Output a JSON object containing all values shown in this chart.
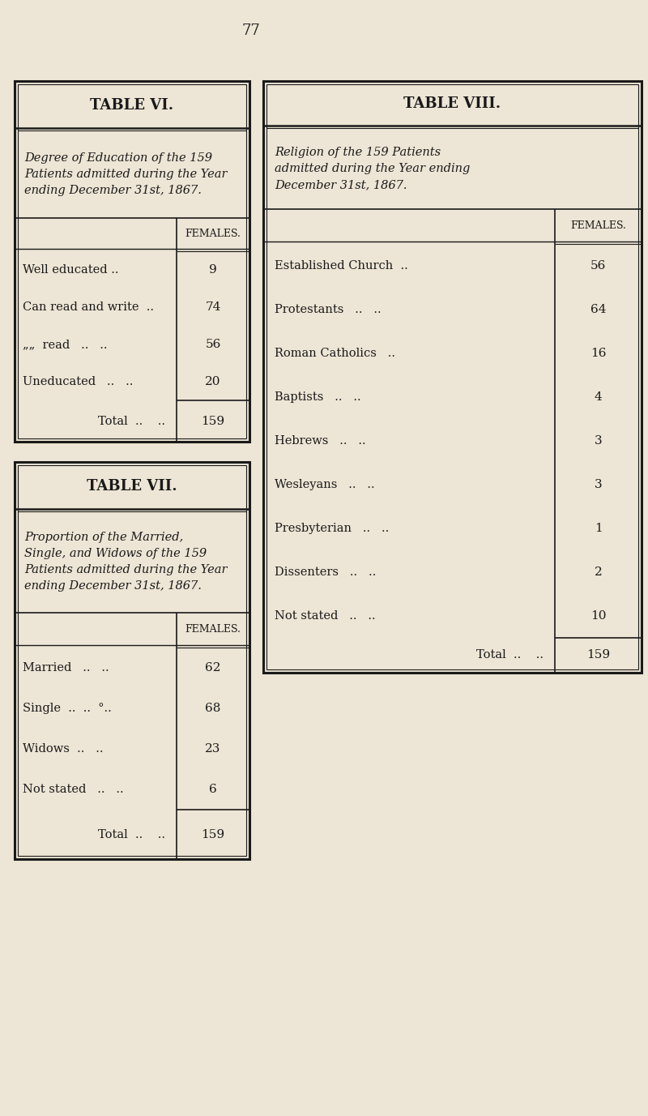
{
  "page_number": "77",
  "bg_color": "#ede5d5",
  "table_bg": "#ede5d5",
  "border_color": "#1a1a1a",
  "text_color": "#1a1a1a",
  "table6": {
    "title": "TABLE VI.",
    "subtitle": "Degree of Education of the 159\nPatients admitted during the Year\nending December 31st, 1867.",
    "col_header": "FEMALES.",
    "row_labels": [
      "Well educated ..",
      "Can read and write  ..",
      "„„  read   ..   ..",
      "Uneducated   ..   .."
    ],
    "row_values": [
      "9",
      "74",
      "56",
      "20"
    ],
    "total_value": "159"
  },
  "table7": {
    "title": "TABLE VII.",
    "subtitle": "Proportion of the Married,\nSingle, and Widows of the 159\nPatients admitted during the Year\nending December 31st, 1867.",
    "col_header": "FEMALES.",
    "row_labels": [
      "Married   ..   ..",
      "Single  ..  ..  °..",
      "Widows  ..   ..",
      "Not stated   ..   .."
    ],
    "row_values": [
      "62",
      "68",
      "23",
      "6"
    ],
    "total_value": "159"
  },
  "table8": {
    "title": "TABLE VIII.",
    "subtitle": "Religion of the 159 Patients\nadmitted during the Year ending\nDecember 31st, 1867.",
    "col_header": "FEMALES.",
    "row_labels": [
      "Established Church  ..",
      "Protestants   ..   ..",
      "Roman Catholics   ..",
      "Baptists   ..   ..",
      "Hebrews   ..   ..",
      "Wesleyans   ..   ..",
      "Presbyterian   ..   ..",
      "Dissenters   ..   ..",
      "Not stated   ..   .."
    ],
    "row_values": [
      "56",
      "64",
      "16",
      "4",
      "3",
      "3",
      "1",
      "2",
      "10"
    ],
    "total_value": "159"
  }
}
